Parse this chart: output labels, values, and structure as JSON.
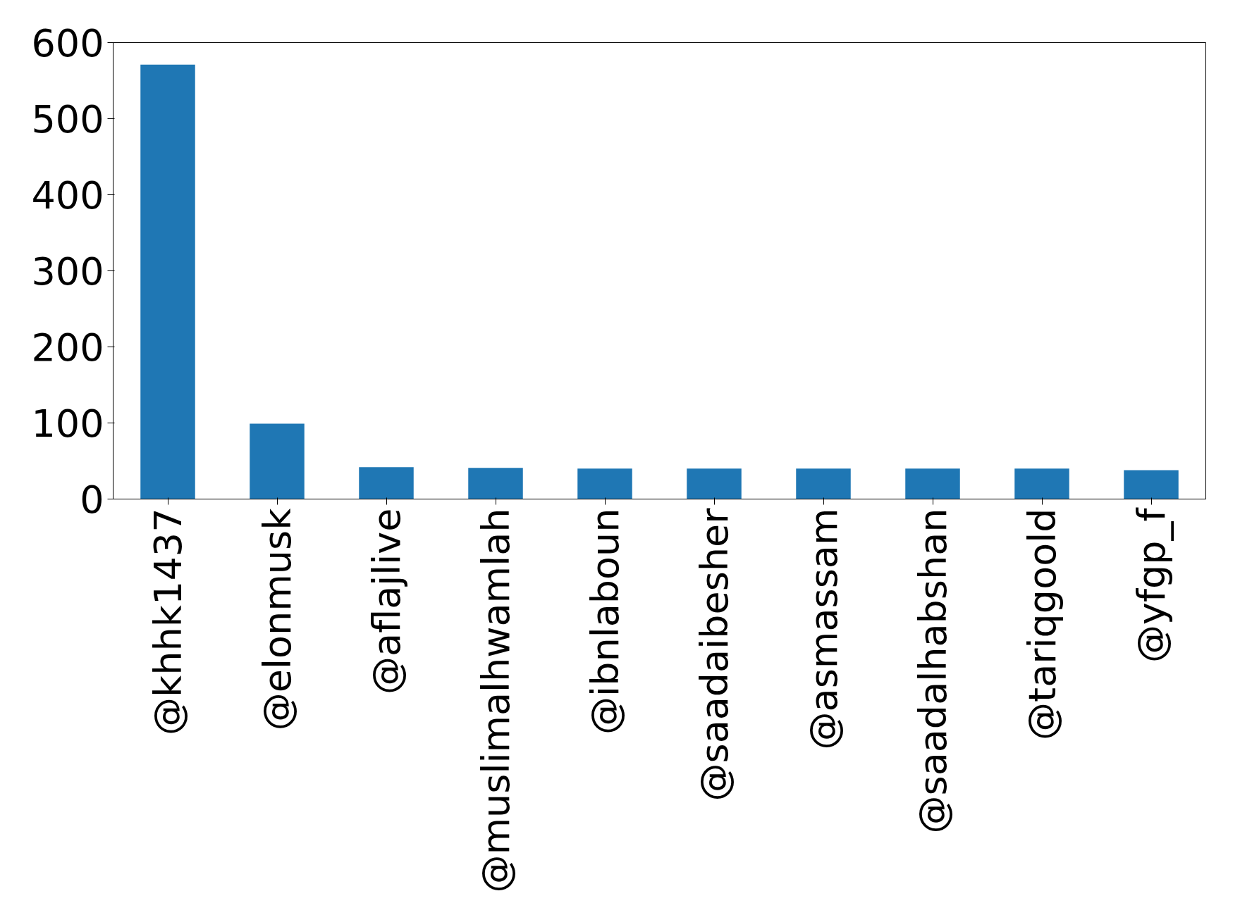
{
  "chart_data": {
    "type": "bar",
    "categories": [
      "@khhk1437",
      "@elonmusk",
      "@aflajlive",
      "@muslimalhwamlah",
      "@ibnlaboun",
      "@saadaibesher",
      "@asmassam",
      "@saadalhabshan",
      "@tariqgoold",
      "@yfgp_f"
    ],
    "values": [
      571,
      99,
      42,
      41,
      40,
      40,
      40,
      40,
      40,
      38
    ],
    "color": "#1f77b4",
    "ylim": [
      0,
      600
    ],
    "yticks": [
      0,
      100,
      200,
      300,
      400,
      500,
      600
    ],
    "grid": false
  }
}
